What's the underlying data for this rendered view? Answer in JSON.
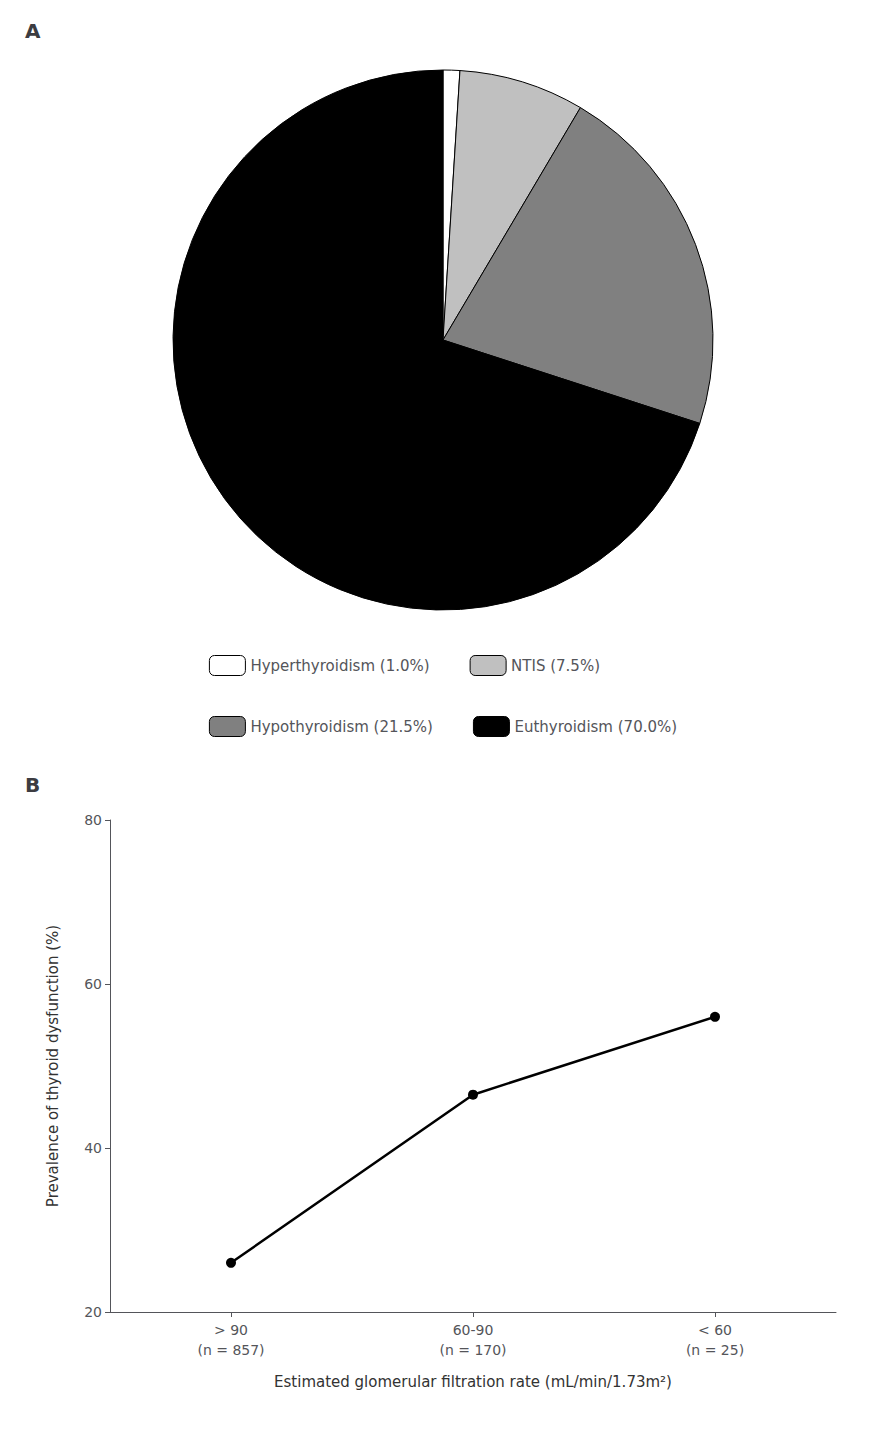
{
  "chart_data": [
    {
      "type": "pie",
      "title": "A",
      "categories": [
        "Hyperthyroidism (1.0%)",
        "NTIS (7.5%)",
        "Hypothyroidism (21.5%)",
        "Euthyroidism (70.0%)"
      ],
      "values": [
        1.0,
        7.5,
        21.5,
        70.0
      ],
      "colors": [
        "#FFFFFF",
        "#C0C0C0",
        "#808080",
        "#000000"
      ],
      "legend": "bottom"
    },
    {
      "type": "line",
      "title": "B",
      "categories": [
        "> 90\n(n = 857)",
        "60-90\n(n = 170)",
        "< 60\n(n = 25)"
      ],
      "values": [
        26.0,
        46.5,
        56.0
      ],
      "color": "#000000",
      "marker": "circle",
      "xlabel": "Estimated glomerular filtration rate (mL/min/1.73m²)",
      "ylabel": "Prevalence of thyroid dysfunction (%)",
      "ylim": [
        20,
        80
      ],
      "yticks": [
        20,
        40,
        60,
        80
      ],
      "grid": false
    }
  ]
}
